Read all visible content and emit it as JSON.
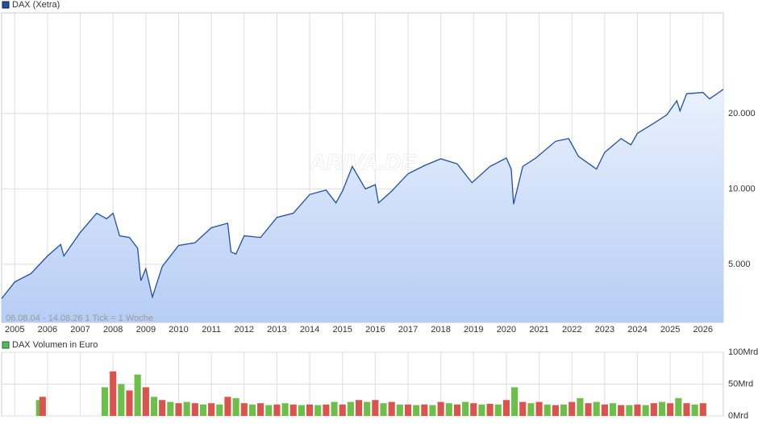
{
  "chart_data": [
    {
      "type": "line",
      "legend": "DAX (Xetra)",
      "color": "#1f4fa8",
      "area_colors": [
        "#e9f1fd",
        "#b7cdf5"
      ],
      "subtitle": "06.08.04 - 14.08.26    1 Tick = 1 Woche",
      "watermark": "ARIVA.DE",
      "log_scale": true,
      "grid": true,
      "xlim": [
        2004.6,
        2026.62
      ],
      "xticks": [
        2005,
        2006,
        2007,
        2008,
        2009,
        2010,
        2011,
        2012,
        2013,
        2014,
        2015,
        2016,
        2017,
        2018,
        2019,
        2020,
        2021,
        2022,
        2023,
        2024,
        2025,
        2026
      ],
      "ylim": [
        2930,
        50500
      ],
      "yticks": [
        {
          "value": 5000,
          "label": "5.000"
        },
        {
          "value": 10000,
          "label": "10.000"
        },
        {
          "value": 20000,
          "label": "20.000"
        }
      ],
      "x": [
        2004.6,
        2005.0,
        2005.5,
        2006.0,
        2006.4,
        2006.5,
        2007.0,
        2007.5,
        2007.8,
        2008.0,
        2008.2,
        2008.5,
        2008.75,
        2008.85,
        2009.0,
        2009.2,
        2009.5,
        2010.0,
        2010.5,
        2011.0,
        2011.5,
        2011.6,
        2011.75,
        2012.0,
        2012.5,
        2013.0,
        2013.5,
        2014.0,
        2014.5,
        2014.8,
        2015.0,
        2015.3,
        2015.7,
        2016.0,
        2016.1,
        2016.5,
        2017.0,
        2017.5,
        2018.0,
        2018.5,
        2018.95,
        2019.5,
        2020.0,
        2020.15,
        2020.22,
        2020.5,
        2020.9,
        2021.5,
        2021.9,
        2022.2,
        2022.75,
        2023.0,
        2023.5,
        2023.8,
        2024.0,
        2024.5,
        2024.9,
        2025.2,
        2025.3,
        2025.5,
        2026.0,
        2026.2,
        2026.62
      ],
      "values": [
        3650,
        4250,
        4600,
        5400,
        6000,
        5400,
        6700,
        8000,
        7600,
        8000,
        6500,
        6400,
        5800,
        4300,
        4800,
        3700,
        4900,
        5950,
        6100,
        7000,
        7300,
        5600,
        5500,
        6500,
        6400,
        7700,
        8000,
        9500,
        9900,
        8800,
        9800,
        12300,
        10000,
        10400,
        8800,
        9800,
        11500,
        12400,
        13200,
        12600,
        10600,
        12300,
        13300,
        12000,
        8700,
        12300,
        13300,
        15500,
        15900,
        13500,
        12000,
        14000,
        15900,
        15000,
        16700,
        18300,
        19800,
        22500,
        20500,
        24000,
        24300,
        22900,
        25000
      ]
    },
    {
      "type": "bar",
      "legend": "DAX Volumen in Euro",
      "legend_color": "#5cb85c",
      "bar_colors": [
        "#6cc04a",
        "#d9534f"
      ],
      "grid": true,
      "xlim": [
        2004.6,
        2026.62
      ],
      "xticks": [
        2005,
        2006,
        2007,
        2008,
        2009,
        2010,
        2011,
        2012,
        2013,
        2014,
        2015,
        2016,
        2017,
        2018,
        2019,
        2020,
        2021,
        2022,
        2023,
        2024,
        2025,
        2026
      ],
      "ylim": [
        0,
        100
      ],
      "yticks": [
        {
          "value": 0,
          "label": "0Mrd"
        },
        {
          "value": 50,
          "label": "50Mrd"
        },
        {
          "value": 100,
          "label": "100Mrd"
        }
      ],
      "x": [
        2005.75,
        2005.85,
        2007.75,
        2008.0,
        2008.25,
        2008.5,
        2008.75,
        2009.0,
        2009.25,
        2009.5,
        2009.75,
        2010.0,
        2010.25,
        2010.5,
        2010.75,
        2011.0,
        2011.25,
        2011.5,
        2011.75,
        2012.0,
        2012.25,
        2012.5,
        2012.75,
        2013.0,
        2013.25,
        2013.5,
        2013.75,
        2014.0,
        2014.25,
        2014.5,
        2014.75,
        2015.0,
        2015.25,
        2015.5,
        2015.75,
        2016.0,
        2016.25,
        2016.5,
        2016.75,
        2017.0,
        2017.25,
        2017.5,
        2017.75,
        2018.0,
        2018.25,
        2018.5,
        2018.75,
        2019.0,
        2019.25,
        2019.5,
        2019.75,
        2020.0,
        2020.25,
        2020.5,
        2020.75,
        2021.0,
        2021.25,
        2021.5,
        2021.75,
        2022.0,
        2022.25,
        2022.5,
        2022.75,
        2023.0,
        2023.25,
        2023.5,
        2023.75,
        2024.0,
        2024.25,
        2024.5,
        2024.75,
        2025.0,
        2025.25,
        2025.5,
        2025.75,
        2026.0
      ],
      "values": [
        25,
        30,
        45,
        70,
        50,
        40,
        65,
        45,
        30,
        25,
        22,
        20,
        22,
        20,
        18,
        20,
        18,
        30,
        28,
        20,
        18,
        20,
        17,
        18,
        20,
        18,
        17,
        18,
        17,
        18,
        22,
        18,
        22,
        25,
        22,
        25,
        20,
        22,
        18,
        18,
        17,
        18,
        17,
        22,
        20,
        18,
        22,
        20,
        18,
        19,
        18,
        25,
        45,
        22,
        20,
        22,
        18,
        17,
        18,
        22,
        28,
        20,
        22,
        18,
        20,
        17,
        17,
        18,
        17,
        20,
        22,
        20,
        28,
        20,
        18,
        20
      ]
    }
  ]
}
